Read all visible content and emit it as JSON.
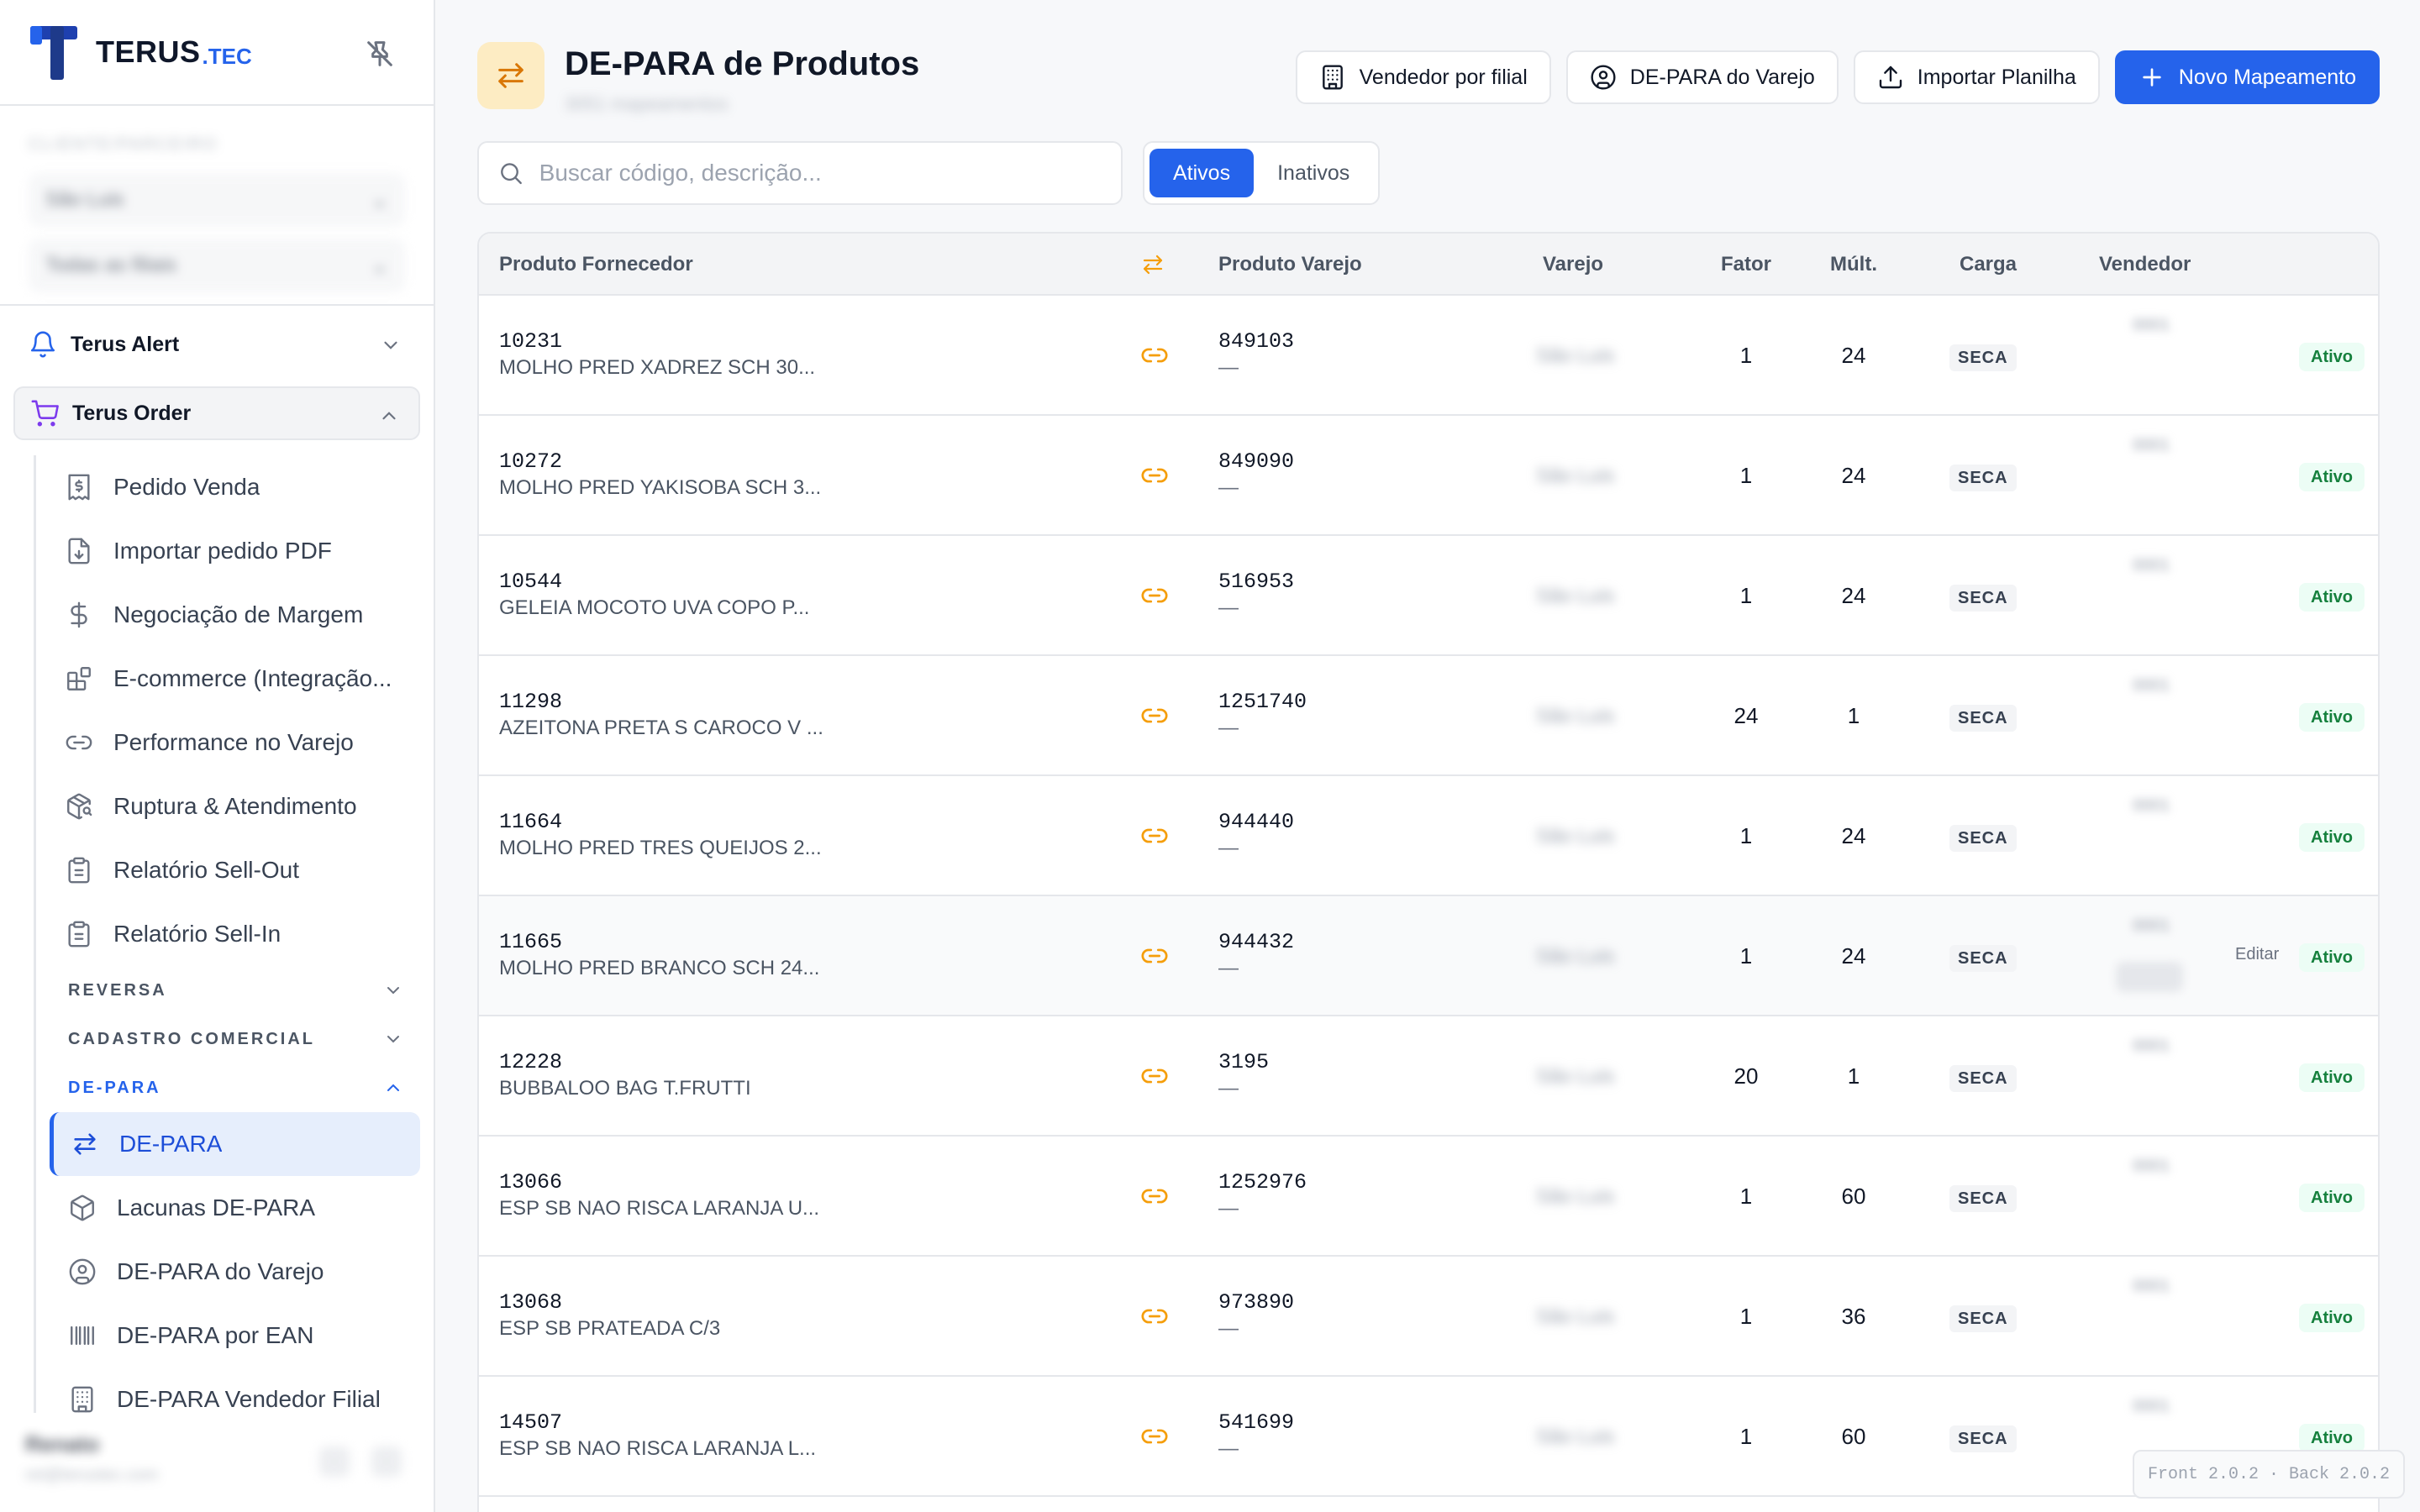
{
  "brand": {
    "name": "TERUS",
    "suffix": ".TEC"
  },
  "sidebar": {
    "org_label": "CLIENTE/PARCEIRO",
    "org_select": "São Luis",
    "filial_select": "Todas as filiais",
    "groups": [
      {
        "label": "Terus Alert",
        "icon": "bell-icon"
      },
      {
        "label": "Terus Order",
        "icon": "cart-icon"
      }
    ],
    "order_items": [
      {
        "label": "Pedido Venda",
        "icon": "invoice-icon"
      },
      {
        "label": "Importar pedido PDF",
        "icon": "file-import-icon"
      },
      {
        "label": "Negociação de Margem",
        "icon": "dollar-icon"
      },
      {
        "label": "E-commerce (Integração...",
        "icon": "blocks-icon"
      },
      {
        "label": "Performance no Varejo",
        "icon": "link-icon"
      },
      {
        "label": "Ruptura & Atendimento",
        "icon": "package-search-icon"
      },
      {
        "label": "Relatório Sell-Out",
        "icon": "clipboard-icon"
      },
      {
        "label": "Relatório Sell-In",
        "icon": "clipboard-icon"
      }
    ],
    "sections": [
      {
        "label": "REVERSA"
      },
      {
        "label": "CADASTRO COMERCIAL"
      },
      {
        "label": "DE-PARA"
      }
    ],
    "depara_items": [
      {
        "label": "DE-PARA",
        "icon": "swap-icon"
      },
      {
        "label": "Lacunas DE-PARA",
        "icon": "box-icon"
      },
      {
        "label": "DE-PARA do Varejo",
        "icon": "user-circle-icon"
      },
      {
        "label": "DE-PARA por EAN",
        "icon": "barcode-icon"
      },
      {
        "label": "DE-PARA Vendedor Filial",
        "icon": "building-icon"
      }
    ],
    "user": {
      "name": "Renato",
      "email": "ret@terustec.com"
    }
  },
  "page": {
    "title": "DE-PARA de Produtos",
    "subtitle": "3051 mapeamentos"
  },
  "actions": {
    "vendedor_filial": "Vendedor por filial",
    "depara_varejo": "DE-PARA do Varejo",
    "importar": "Importar Planilha",
    "novo": "Novo Mapeamento"
  },
  "search": {
    "placeholder": "Buscar código, descrição..."
  },
  "filter": {
    "active": "Ativos",
    "inactive": "Inativos"
  },
  "table": {
    "headers": {
      "fornecedor": "Produto Fornecedor",
      "varejo_prod": "Produto Varejo",
      "varejo": "Varejo",
      "fator": "Fator",
      "mult": "Múlt.",
      "carga": "Carga",
      "vendedor": "Vendedor"
    },
    "rows": [
      {
        "code": "10231",
        "desc": "MOLHO PRED XADREZ SCH 30...",
        "vcode": "849103",
        "vdesc": "—",
        "varejo": "São Luis",
        "fator": "1",
        "mult": "24",
        "carga": "SECA",
        "vendedor": "0001",
        "status": "Ativo"
      },
      {
        "code": "10272",
        "desc": "MOLHO PRED YAKISOBA SCH 3...",
        "vcode": "849090",
        "vdesc": "—",
        "varejo": "São Luis",
        "fator": "1",
        "mult": "24",
        "carga": "SECA",
        "vendedor": "0001",
        "status": "Ativo"
      },
      {
        "code": "10544",
        "desc": "GELEIA MOCOTO UVA COPO P...",
        "vcode": "516953",
        "vdesc": "—",
        "varejo": "São Luis",
        "fator": "1",
        "mult": "24",
        "carga": "SECA",
        "vendedor": "0001",
        "status": "Ativo"
      },
      {
        "code": "11298",
        "desc": "AZEITONA PRETA S CAROCO V ...",
        "vcode": "1251740",
        "vdesc": "—",
        "varejo": "São Luis",
        "fator": "24",
        "mult": "1",
        "carga": "SECA",
        "vendedor": "0001",
        "status": "Ativo"
      },
      {
        "code": "11664",
        "desc": "MOLHO PRED TRES QUEIJOS 2...",
        "vcode": "944440",
        "vdesc": "—",
        "varejo": "São Luis",
        "fator": "1",
        "mult": "24",
        "carga": "SECA",
        "vendedor": "0001",
        "status": "Ativo"
      },
      {
        "code": "11665",
        "desc": "MOLHO PRED BRANCO SCH 24...",
        "vcode": "944432",
        "vdesc": "—",
        "varejo": "São Luis",
        "fator": "1",
        "mult": "24",
        "carga": "SECA",
        "vendedor": "0001",
        "status": "Ativo",
        "edit": "Editar"
      },
      {
        "code": "12228",
        "desc": "BUBBALOO BAG T.FRUTTI",
        "vcode": "3195",
        "vdesc": "—",
        "varejo": "São Luis",
        "fator": "20",
        "mult": "1",
        "carga": "SECA",
        "vendedor": "0001",
        "status": "Ativo"
      },
      {
        "code": "13066",
        "desc": "ESP SB NAO RISCA LARANJA U...",
        "vcode": "1252976",
        "vdesc": "—",
        "varejo": "São Luis",
        "fator": "1",
        "mult": "60",
        "carga": "SECA",
        "vendedor": "0001",
        "status": "Ativo"
      },
      {
        "code": "13068",
        "desc": "ESP SB PRATEADA C/3",
        "vcode": "973890",
        "vdesc": "—",
        "varejo": "São Luis",
        "fator": "1",
        "mult": "36",
        "carga": "SECA",
        "vendedor": "0001",
        "status": "Ativo"
      },
      {
        "code": "14507",
        "desc": "ESP SB NAO RISCA LARANJA L...",
        "vcode": "541699",
        "vdesc": "—",
        "varejo": "São Luis",
        "fator": "1",
        "mult": "60",
        "carga": "SECA",
        "vendedor": "0001",
        "status": "Ativo"
      }
    ]
  },
  "version": "Front 2.0.2 · Back 2.0.2",
  "colors": {
    "accent": "#2563eb",
    "link": "#f59e0b",
    "status_ok": "#15803d"
  }
}
